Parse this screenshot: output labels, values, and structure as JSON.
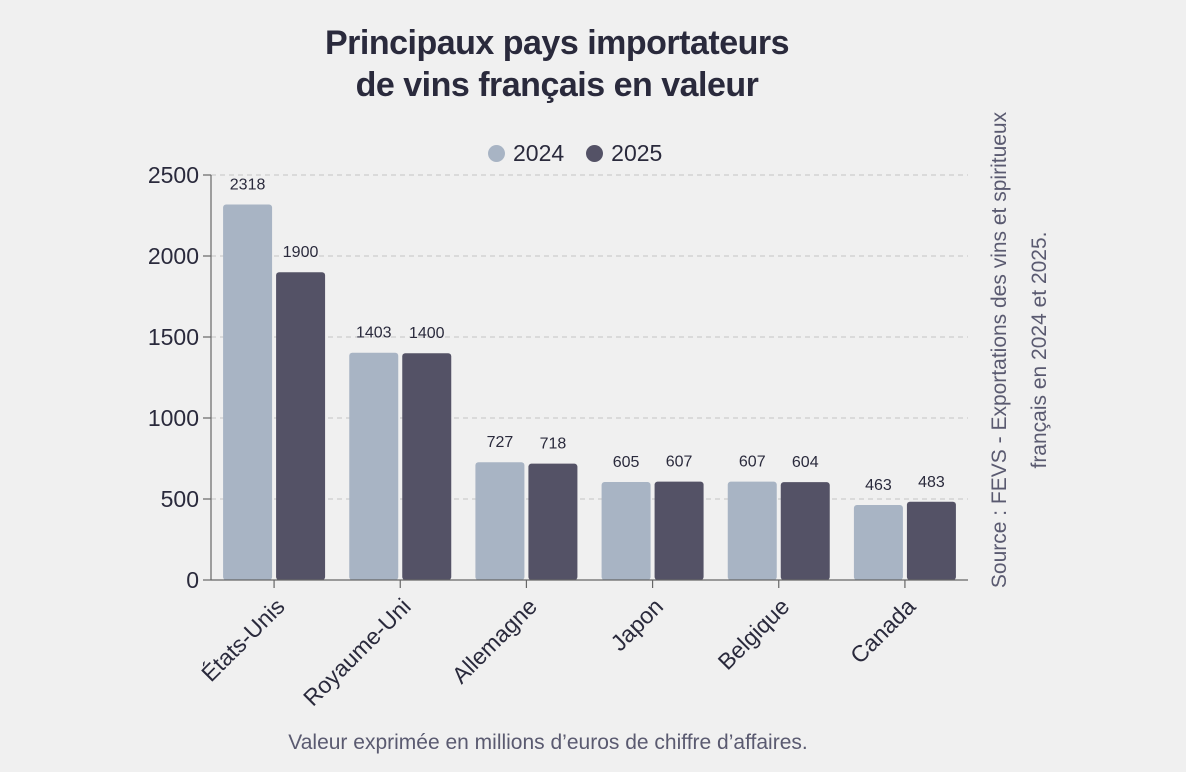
{
  "chart_data": {
    "type": "bar",
    "title": [
      "Principaux pays importateurs",
      "de vins français en valeur"
    ],
    "categories": [
      "États-Unis",
      "Royaume-Uni",
      "Allemagne",
      "Japon",
      "Belgique",
      "Canada"
    ],
    "series": [
      {
        "name": "2024",
        "color": "#a8b4c4",
        "values": [
          2318,
          1403,
          727,
          605,
          607,
          463
        ]
      },
      {
        "name": "2025",
        "color": "#545266",
        "values": [
          1900,
          1400,
          718,
          607,
          604,
          483
        ]
      }
    ],
    "ylim": [
      0,
      2500
    ],
    "yticks": [
      0,
      500,
      1000,
      1500,
      2000,
      2500
    ],
    "grid": true,
    "legend_position": "top"
  },
  "footnote": "Valeur exprimée en millions d’euros de chiffre d’affaires.",
  "source": [
    "Source : FEVS - Exportations des vins et spiritueux",
    "français en 2024 et 2025."
  ]
}
